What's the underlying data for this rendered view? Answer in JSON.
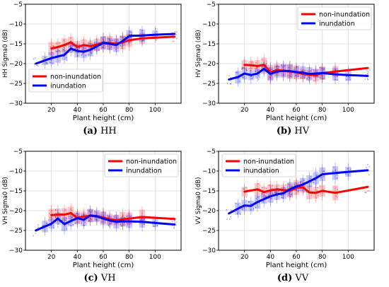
{
  "figure": {
    "panels": [
      {
        "caption_letter": "(a)",
        "caption_text": "HH"
      },
      {
        "caption_letter": "(b)",
        "caption_text": "HV"
      },
      {
        "caption_letter": "(c)",
        "caption_text": "VH"
      },
      {
        "caption_letter": "(d)",
        "caption_text": "VV"
      }
    ]
  },
  "chart_data": [
    {
      "type": "line",
      "xlabel": "Plant height (cm)",
      "ylabel": "HH Sigma0 (dB)",
      "xlim": [
        0,
        120
      ],
      "ylim": [
        -30,
        -5
      ],
      "xticks": [
        20,
        40,
        60,
        80,
        100
      ],
      "yticks": [
        -30,
        -25,
        -20,
        -15,
        -10,
        -5
      ],
      "grid": true,
      "legend_position": "lower-left",
      "series": [
        {
          "name": "non-inundation",
          "color": "#ff0000",
          "x": [
            20,
            25,
            30,
            35,
            40,
            45,
            50,
            55,
            60,
            65,
            70,
            75,
            80,
            90,
            115
          ],
          "y": [
            -16.2,
            -15.8,
            -15.3,
            -14.6,
            -15.8,
            -15.3,
            -15.6,
            -15.2,
            -14.7,
            -14.8,
            -15.0,
            -14.6,
            -14.1,
            -13.6,
            -13.2
          ]
        },
        {
          "name": "inundation",
          "color": "#0000ff",
          "x": [
            8,
            15,
            20,
            25,
            30,
            35,
            40,
            45,
            50,
            55,
            60,
            65,
            70,
            75,
            80,
            90,
            100,
            115
          ],
          "y": [
            -20.0,
            -19.2,
            -18.6,
            -18.2,
            -17.8,
            -16.2,
            -16.8,
            -17.0,
            -16.5,
            -15.6,
            -14.8,
            -15.0,
            -15.3,
            -14.3,
            -13.0,
            -12.9,
            -12.7,
            -12.5
          ]
        }
      ]
    },
    {
      "type": "line",
      "xlabel": "Plant height (cm)",
      "ylabel": "HV Sigma0 (dB)",
      "xlim": [
        0,
        120
      ],
      "ylim": [
        -30,
        -5
      ],
      "xticks": [
        20,
        40,
        60,
        80,
        100
      ],
      "yticks": [
        -30,
        -25,
        -20,
        -15,
        -10,
        -5
      ],
      "grid": true,
      "legend_position": "top-right",
      "series": [
        {
          "name": "non-inundation",
          "color": "#ff0000",
          "x": [
            20,
            25,
            30,
            35,
            40,
            45,
            50,
            55,
            60,
            65,
            70,
            75,
            80,
            90,
            115
          ],
          "y": [
            -20.3,
            -20.4,
            -20.6,
            -20.3,
            -22.2,
            -21.6,
            -21.8,
            -22.0,
            -22.2,
            -22.6,
            -22.8,
            -22.9,
            -22.4,
            -22.0,
            -21.1
          ]
        },
        {
          "name": "inundation",
          "color": "#0000ff",
          "x": [
            8,
            15,
            20,
            25,
            30,
            35,
            40,
            45,
            50,
            55,
            60,
            65,
            70,
            75,
            80,
            90,
            100,
            115
          ],
          "y": [
            -24.0,
            -23.4,
            -22.5,
            -22.9,
            -22.5,
            -21.3,
            -22.6,
            -22.0,
            -21.8,
            -21.9,
            -22.1,
            -22.3,
            -22.6,
            -22.5,
            -22.4,
            -22.7,
            -22.9,
            -23.1
          ]
        }
      ]
    },
    {
      "type": "line",
      "xlabel": "Plant height (cm)",
      "ylabel": "VH Sigma0 (dB)",
      "xlim": [
        0,
        120
      ],
      "ylim": [
        -30,
        -5
      ],
      "xticks": [
        20,
        40,
        60,
        80,
        100
      ],
      "yticks": [
        -30,
        -25,
        -20,
        -15,
        -10,
        -5
      ],
      "grid": true,
      "legend_position": "top-right",
      "series": [
        {
          "name": "non-inundation",
          "color": "#ff0000",
          "x": [
            20,
            25,
            30,
            35,
            40,
            45,
            50,
            55,
            60,
            65,
            70,
            75,
            80,
            90,
            115
          ],
          "y": [
            -21.1,
            -21.0,
            -21.0,
            -20.6,
            -21.8,
            -21.5,
            -21.3,
            -21.5,
            -21.7,
            -22.2,
            -22.4,
            -22.2,
            -22.0,
            -21.6,
            -22.1
          ]
        },
        {
          "name": "inundation",
          "color": "#0000ff",
          "x": [
            8,
            15,
            20,
            25,
            30,
            35,
            40,
            45,
            50,
            55,
            60,
            65,
            70,
            75,
            80,
            90,
            100,
            115
          ],
          "y": [
            -25.0,
            -24.0,
            -23.3,
            -22.0,
            -23.4,
            -22.6,
            -21.9,
            -22.3,
            -21.2,
            -21.4,
            -22.0,
            -22.5,
            -22.8,
            -22.7,
            -22.7,
            -22.8,
            -23.1,
            -23.5
          ]
        }
      ]
    },
    {
      "type": "line",
      "xlabel": "Plant height (cm)",
      "ylabel": "VV Sigma0 (dB)",
      "xlim": [
        0,
        120
      ],
      "ylim": [
        -30,
        -5
      ],
      "xticks": [
        20,
        40,
        60,
        80,
        100
      ],
      "yticks": [
        -30,
        -25,
        -20,
        -15,
        -10,
        -5
      ],
      "grid": true,
      "legend_position": "top-left",
      "series": [
        {
          "name": "non-inundation",
          "color": "#ff0000",
          "x": [
            20,
            30,
            35,
            40,
            45,
            50,
            55,
            60,
            65,
            70,
            75,
            80,
            90,
            115
          ],
          "y": [
            -15.2,
            -14.6,
            -15.3,
            -14.9,
            -14.6,
            -14.8,
            -15.0,
            -14.2,
            -14.1,
            -15.4,
            -15.5,
            -15.0,
            -15.5,
            -14.0
          ]
        },
        {
          "name": "inundation",
          "color": "#0000ff",
          "x": [
            8,
            15,
            20,
            25,
            30,
            35,
            40,
            45,
            50,
            55,
            60,
            65,
            70,
            75,
            80,
            90,
            100,
            115
          ],
          "y": [
            -20.7,
            -19.5,
            -18.7,
            -18.8,
            -17.8,
            -17.1,
            -16.4,
            -15.9,
            -15.6,
            -14.6,
            -13.9,
            -13.4,
            -12.6,
            -11.8,
            -10.8,
            -10.5,
            -10.2,
            -9.8
          ]
        }
      ]
    }
  ]
}
